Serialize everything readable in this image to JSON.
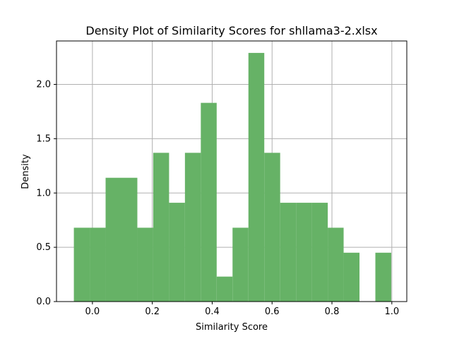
{
  "chart_data": {
    "type": "bar",
    "title": "Density Plot of Similarity Scores for shllama3-2.xlsx",
    "xlabel": "Similarity Score",
    "ylabel": "Density",
    "xlim": [
      -0.12,
      1.05
    ],
    "ylim": [
      0,
      2.4
    ],
    "grid": true,
    "color": "#66b266",
    "x_ticks": [
      0.0,
      0.2,
      0.4,
      0.6,
      0.8,
      1.0
    ],
    "x_tick_labels": [
      "0.0",
      "0.2",
      "0.4",
      "0.6",
      "0.8",
      "1.0"
    ],
    "y_ticks": [
      0.0,
      0.5,
      1.0,
      1.5,
      2.0
    ],
    "y_tick_labels": [
      "0.0",
      "0.5",
      "1.0",
      "1.5",
      "2.0"
    ],
    "bin_edges": [
      -0.062,
      -0.009,
      0.044,
      0.097,
      0.15,
      0.203,
      0.256,
      0.309,
      0.362,
      0.415,
      0.468,
      0.521,
      0.574,
      0.627,
      0.68,
      0.733,
      0.786,
      0.839,
      0.892,
      0.945,
      0.998
    ],
    "values": [
      0.68,
      0.68,
      1.14,
      1.14,
      0.68,
      1.37,
      0.91,
      1.37,
      1.83,
      0.23,
      0.68,
      2.29,
      1.37,
      0.91,
      0.91,
      0.91,
      0.68,
      0.45,
      0.0,
      0.45
    ]
  }
}
